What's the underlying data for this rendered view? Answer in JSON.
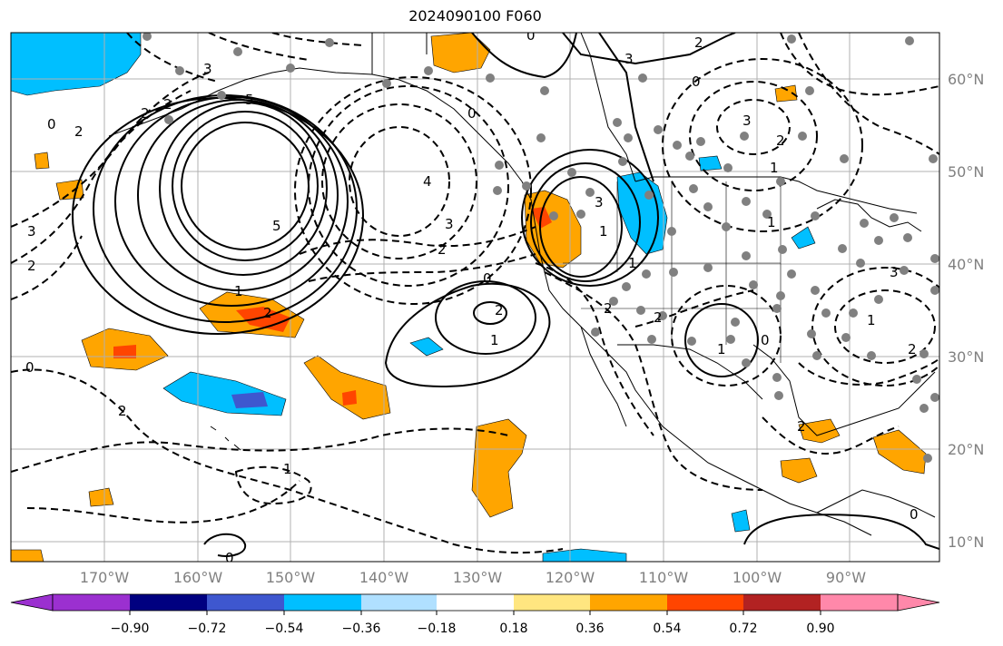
{
  "title": "2024090100 F060",
  "map": {
    "lon_labels": [
      "170°W",
      "160°W",
      "150°W",
      "140°W",
      "130°W",
      "120°W",
      "110°W",
      "100°W",
      "90°W"
    ],
    "lat_labels": [
      "60°N",
      "50°N",
      "40°N",
      "30°N",
      "20°N",
      "10°N"
    ],
    "contour_labels": [
      "0",
      "2",
      "2",
      "2",
      "3",
      "5",
      "5",
      "4",
      "3",
      "2",
      "3",
      "2",
      "0",
      "0",
      "1",
      "2",
      "1",
      "1",
      "0",
      "2",
      "2",
      "3",
      "1",
      "0",
      "1",
      "2",
      "3",
      "1",
      "2",
      "0",
      "0",
      "0",
      "3",
      "2",
      "1",
      "1",
      "3",
      "2",
      "2",
      "0",
      "2",
      "1"
    ]
  },
  "colorbar": {
    "colors": [
      "#9b30d0",
      "#000080",
      "#3e57cf",
      "#00bfff",
      "#b0e0ff",
      "#ffffff",
      "#ffe680",
      "#ffa500",
      "#ff4500",
      "#b22222",
      "#ff88aa"
    ],
    "tick_labels": [
      "−0.90",
      "−0.72",
      "−0.54",
      "−0.36",
      "−0.18",
      "0.18",
      "0.36",
      "0.54",
      "0.72",
      "0.90"
    ]
  },
  "colors": {
    "grid": "#b0b0b0",
    "station": "#808080",
    "tick_text": "#808080"
  }
}
